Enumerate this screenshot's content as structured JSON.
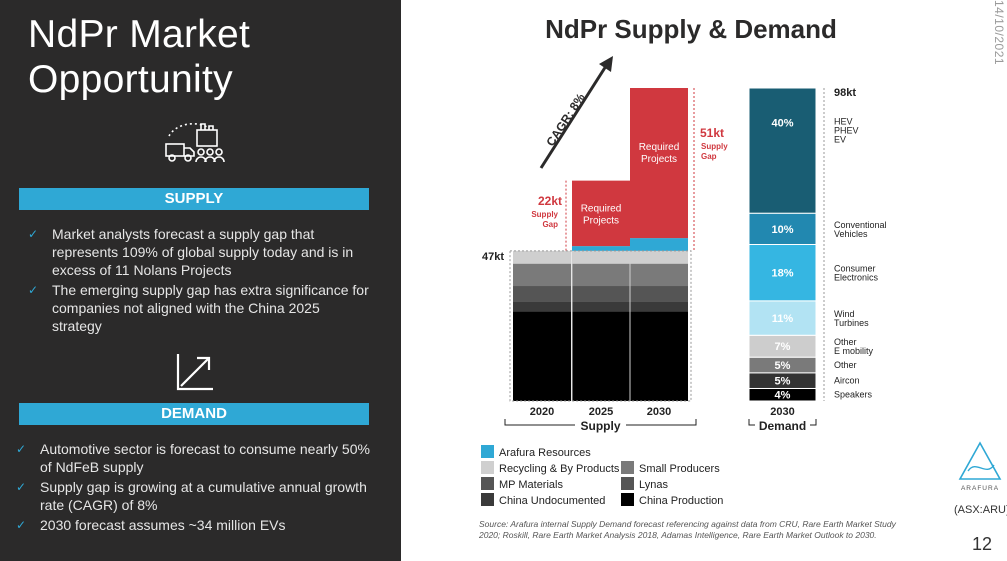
{
  "slide": {
    "title_line1": "NdPr Market",
    "title_line2": "Opportunity",
    "date": "14/10/2021",
    "page_number": "12",
    "ticker": "(ASX:ARU)",
    "source": "Source: Arafura internal Supply Demand forecast referencing against data from CRU, Rare Earth Market Study 2020; Roskill, Rare Earth Market Analysis 2018, Adamas Intelligence, Rare Earth Market Outlook to 2030.",
    "logo_text": "ARAFURA"
  },
  "supply": {
    "heading": "SUPPLY",
    "bullets": [
      "Market analysts forecast a supply gap that represents 109% of global supply today and is in excess of 11 Nolans Projects",
      "The emerging supply gap has extra significance for companies not aligned with the China 2025 strategy"
    ]
  },
  "demand": {
    "heading": "DEMAND",
    "bullets": [
      "Automotive sector is forecast to consume nearly 50% of NdFeB supply",
      "Supply gap is growing at a cumulative annual growth rate (CAGR) of 8%",
      "2030 forecast assumes ~34 million EVs"
    ]
  },
  "chart_data": {
    "type": "bar",
    "title": "NdPr Supply & Demand",
    "units": "kt",
    "ylim": [
      0,
      98
    ],
    "cagr_label": "CAGR: 8%",
    "supply_group_label": "Supply",
    "demand_group_label": "Demand",
    "categories": [
      "2020",
      "2025",
      "2030"
    ],
    "base_supply_label": "47kt",
    "base_supply_value": 47,
    "supply_series": [
      {
        "name": "China Production",
        "color": "#000000",
        "values": [
          28,
          28,
          28
        ]
      },
      {
        "name": "China Undocumented",
        "color": "#3a3a3a",
        "values": [
          3,
          3,
          3
        ]
      },
      {
        "name": "Lynas",
        "color": "#555555",
        "values": [
          5,
          5,
          5
        ]
      },
      {
        "name": "Small Producers",
        "color": "#7a7a7a",
        "values": [
          7,
          7,
          7
        ]
      },
      {
        "name": "Recycling & By Products",
        "color": "#cfcfcf",
        "values": [
          4,
          4,
          4
        ]
      },
      {
        "name": "Arafura Resources",
        "color": "#2fa8d5",
        "values": [
          0,
          1.5,
          4
        ]
      },
      {
        "name": "Required Projects",
        "color": "#d0383f",
        "values": [
          0,
          20.5,
          47
        ]
      }
    ],
    "required_label": "Required Projects",
    "gaps": [
      {
        "category": "2025",
        "value_label": "22kt",
        "text": "Supply Gap",
        "value": 22
      },
      {
        "category": "2030",
        "value_label": "51kt",
        "text": "Supply Gap",
        "value": 51
      }
    ],
    "demand": {
      "category": "2030",
      "total_label": "98kt",
      "total": 98,
      "segments": [
        {
          "pct": 4,
          "label": "4%",
          "name": "Speakers",
          "color": "#000000"
        },
        {
          "pct": 5,
          "label": "5%",
          "name": "Aircon",
          "color": "#333333"
        },
        {
          "pct": 5,
          "label": "5%",
          "name": "Other",
          "color": "#7a7a7a"
        },
        {
          "pct": 7,
          "label": "7%",
          "name": "Other E mobility",
          "color": "#cdcdcd"
        },
        {
          "pct": 11,
          "label": "11%",
          "name": "Wind Turbines",
          "color": "#b2e3f3"
        },
        {
          "pct": 18,
          "label": "18%",
          "name": "Consumer Electronics",
          "color": "#35b6e2"
        },
        {
          "pct": 10,
          "label": "10%",
          "name": "Conventional Vehicles",
          "color": "#2288b0"
        },
        {
          "pct": 40,
          "label": "40%",
          "name": "HEV PHEV EV",
          "color": "#195d73"
        }
      ]
    },
    "legend": [
      {
        "name": "Arafura Resources",
        "color": "#2fa8d5"
      },
      {
        "name": "Recycling & By Products",
        "color": "#cfcfcf"
      },
      {
        "name": "Small Producers",
        "color": "#7a7a7a"
      },
      {
        "name": "MP Materials",
        "color": "#555555"
      },
      {
        "name": "Lynas",
        "color": "#555555"
      },
      {
        "name": "China Undocumented",
        "color": "#3a3a3a"
      },
      {
        "name": "China Production",
        "color": "#000000"
      }
    ]
  }
}
